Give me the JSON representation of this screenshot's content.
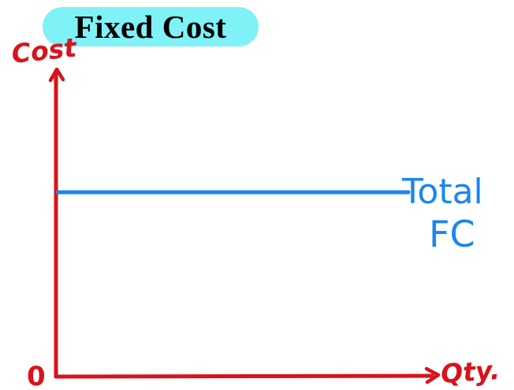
{
  "title": "Fixed Cost",
  "axes": {
    "y_label": "Cost",
    "x_label": "Qty.",
    "origin_label": "0"
  },
  "line": {
    "label_line1": "Total",
    "label_line2": "FC"
  },
  "colors": {
    "axis": "#d8131b",
    "line": "#1a86f0",
    "title_bg": "#7ff2f7"
  }
}
